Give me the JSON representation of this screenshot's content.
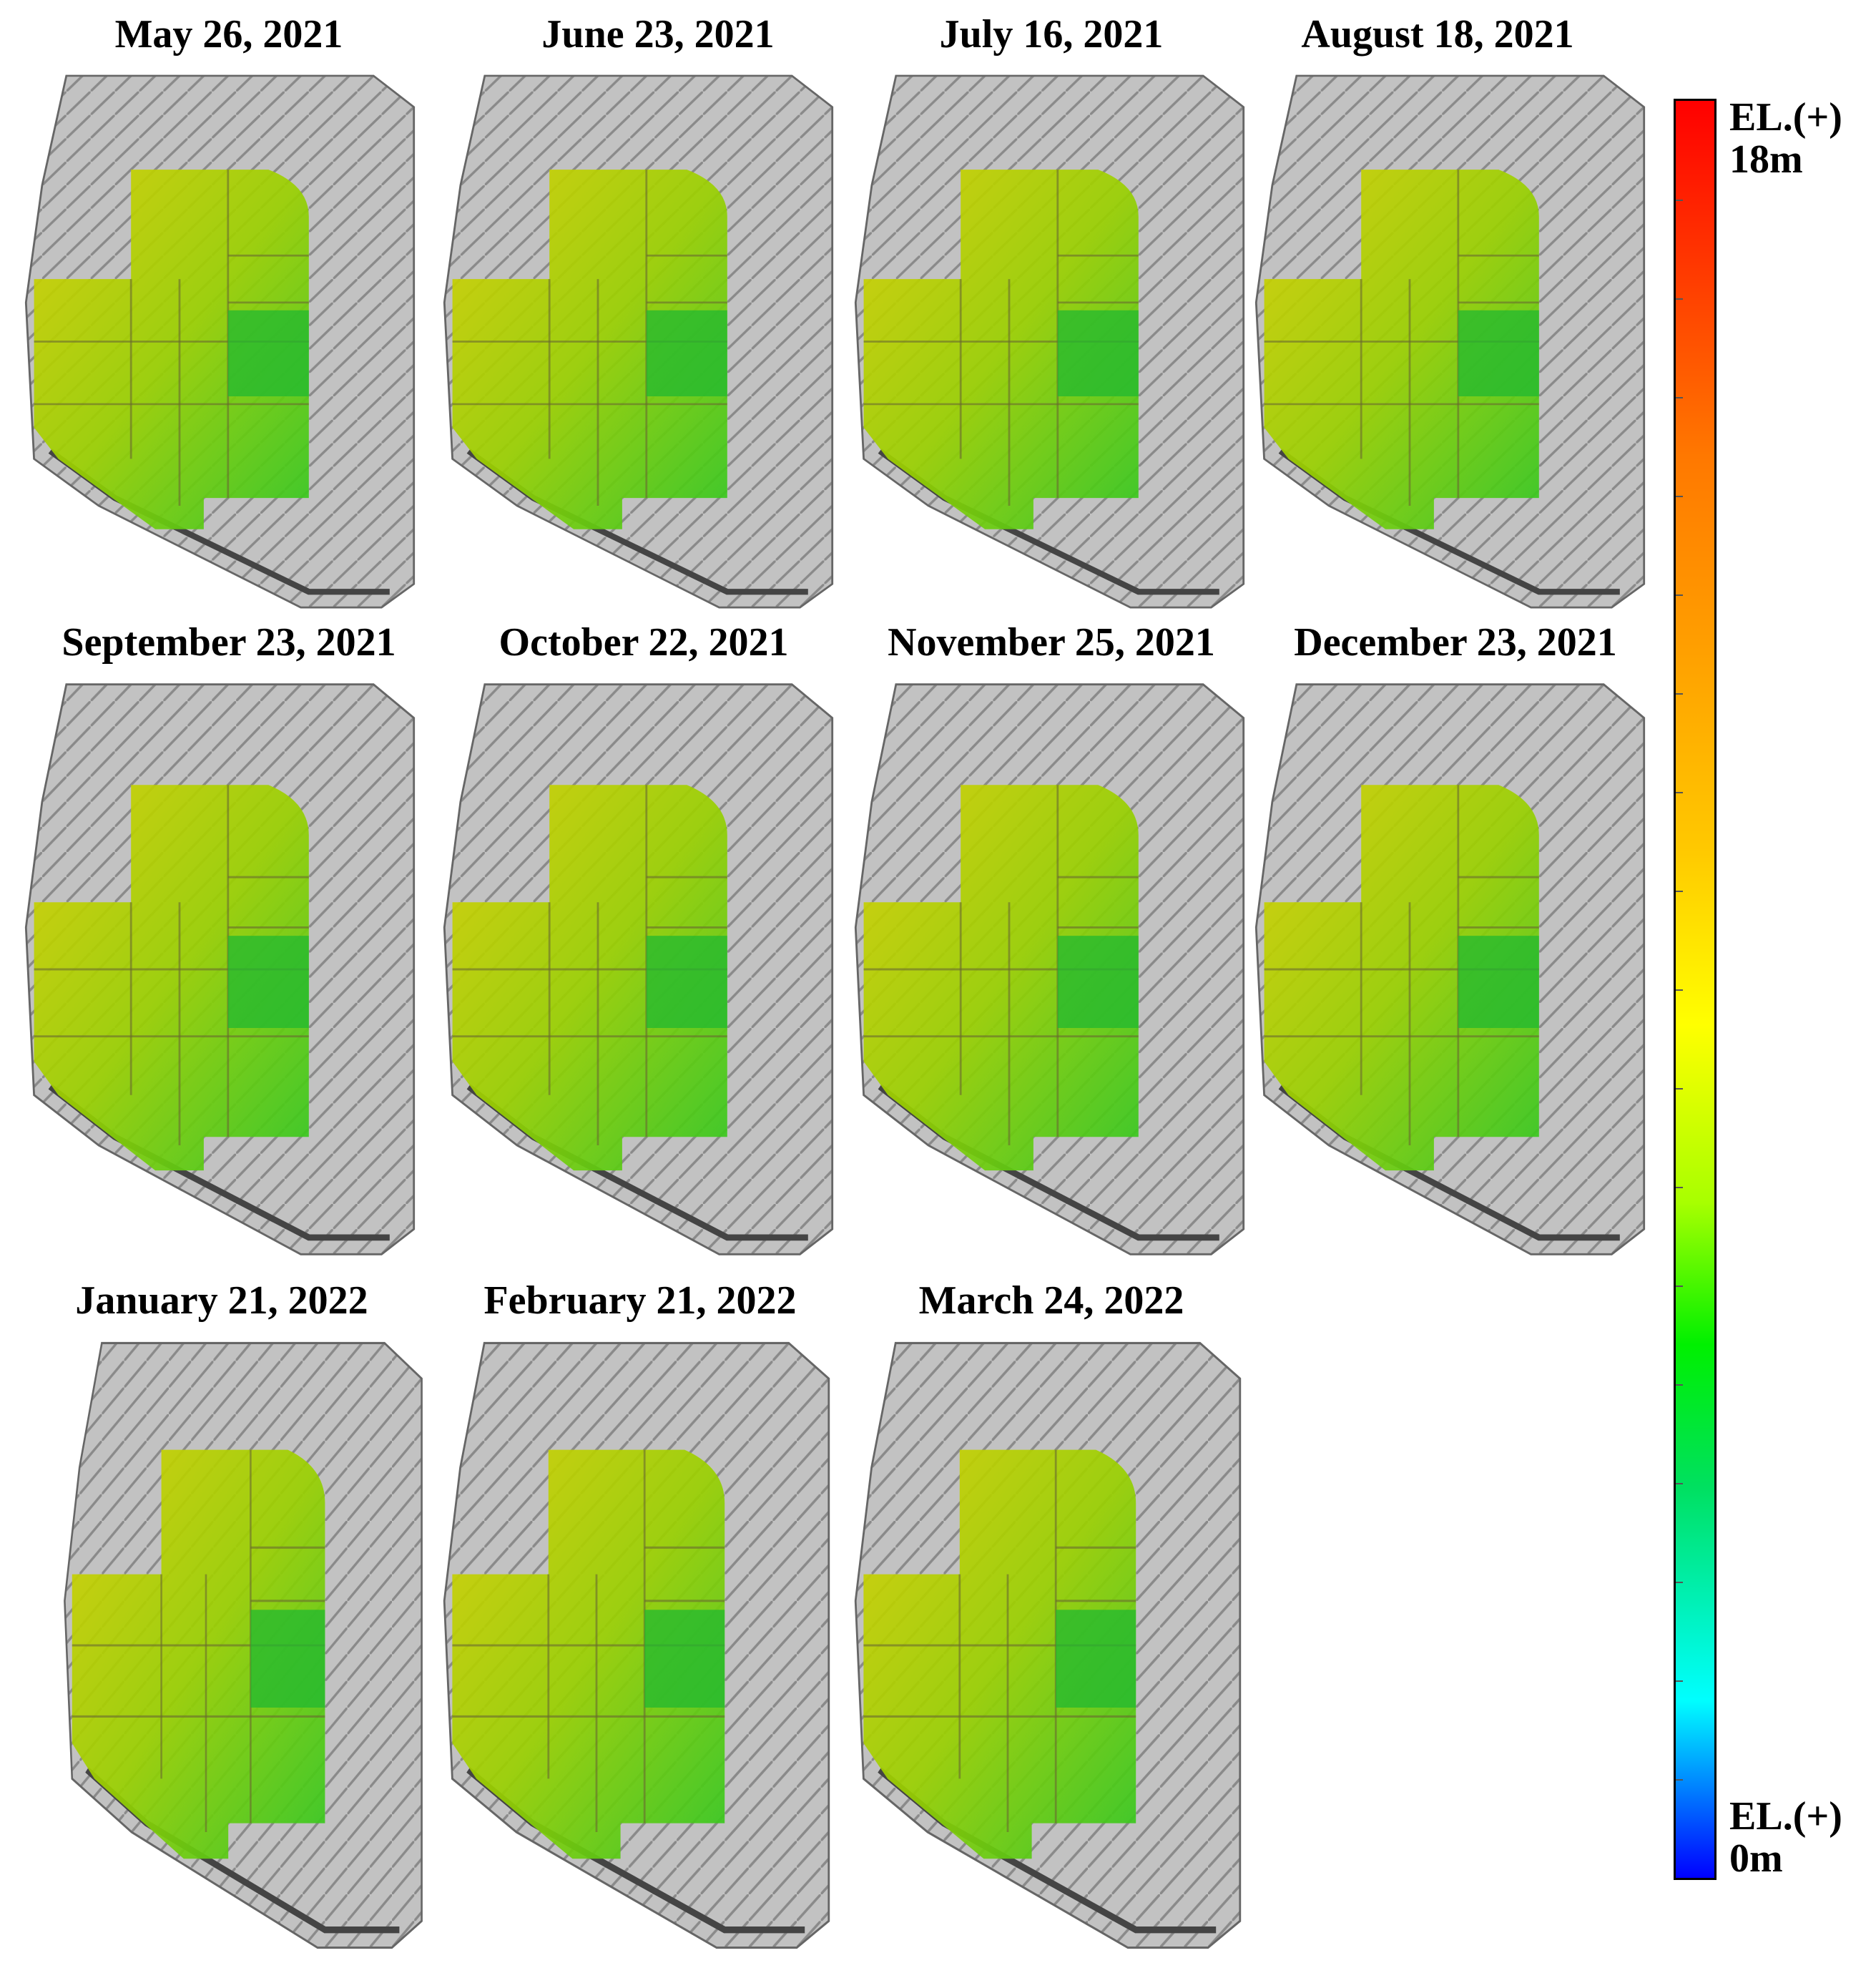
{
  "panels": [
    {
      "id": "p1",
      "date": "May 26, 2021"
    },
    {
      "id": "p2",
      "date": "June 23, 2021"
    },
    {
      "id": "p3",
      "date": "July 16, 2021"
    },
    {
      "id": "p4",
      "date": "August 18, 2021"
    },
    {
      "id": "p5",
      "date": "September 23, 2021"
    },
    {
      "id": "p6",
      "date": "October 22, 2021"
    },
    {
      "id": "p7",
      "date": "November 25, 2021"
    },
    {
      "id": "p8",
      "date": "December 23, 2021"
    },
    {
      "id": "p9",
      "date": "January 21, 2022"
    },
    {
      "id": "p10",
      "date": "February 21, 2022"
    },
    {
      "id": "p11",
      "date": "March 24, 2022"
    }
  ],
  "legend": {
    "top_label": "EL.(+)",
    "top_value": "18m",
    "bottom_label": "EL.(+)",
    "bottom_value": "0m",
    "max_elevation_m": 18,
    "min_elevation_m": 0
  },
  "colors": {
    "hillshade": "#b4b4b4",
    "high": "#ff0000",
    "mid_high": "#ffa500",
    "mid": "#ffff00",
    "mid_low": "#00e000",
    "low": "#0000ff"
  }
}
